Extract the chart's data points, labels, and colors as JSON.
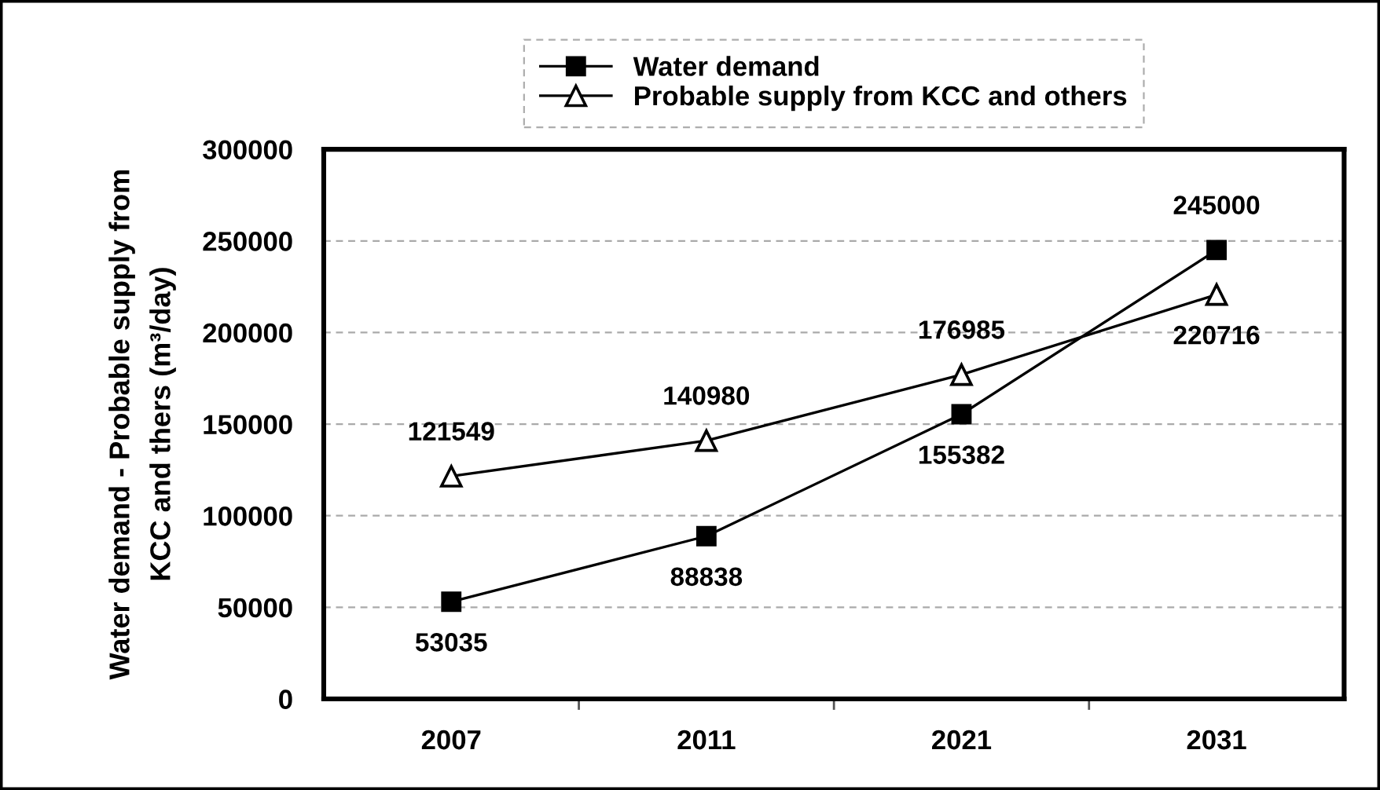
{
  "chart_data": {
    "type": "line",
    "ylabel": "Water demand - Probable supply from\nKCC and thers (m³/day)",
    "categories": [
      "2007",
      "2011",
      "2021",
      "2031"
    ],
    "series": [
      {
        "name": "Water demand",
        "color": "#000000",
        "marker": "square",
        "values": [
          53035,
          88838,
          155382,
          245000
        ]
      },
      {
        "name": "Probable supply from KCC and others",
        "color": "#000000",
        "marker": "triangle",
        "values": [
          121549,
          140980,
          176985,
          220716
        ]
      }
    ],
    "ylim": [
      0,
      300000
    ],
    "yticks": [
      0,
      50000,
      100000,
      150000,
      200000,
      250000,
      300000
    ],
    "grid": "y",
    "legend": "top",
    "data_labels": true,
    "line_style": "solid"
  }
}
